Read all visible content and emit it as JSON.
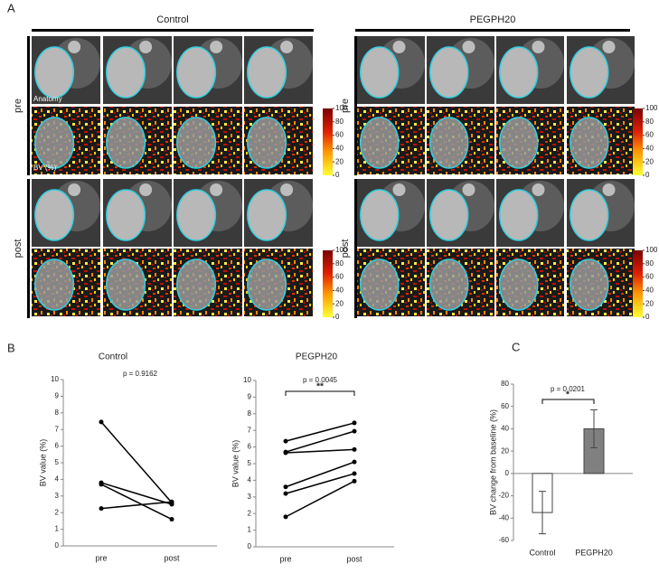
{
  "panel_a": {
    "label": "A",
    "groups": [
      "Control",
      "PEGPH20"
    ],
    "rows": [
      "pre",
      "post"
    ],
    "anatomy_label": "Anatomy",
    "bv_label": "BV (%)",
    "colorbar_lim": [
      0,
      100
    ],
    "colorbar_ticks": [
      0,
      20,
      40,
      60,
      80,
      100
    ]
  },
  "panel_labels": [
    "B",
    "C"
  ],
  "chart_data": [
    {
      "type": "line",
      "title": "Control",
      "categories": [
        "pre",
        "post"
      ],
      "y_label": "BV value (%)",
      "ylim": [
        0,
        10
      ],
      "yticks": [
        0,
        1,
        2,
        3,
        4,
        5,
        6,
        7,
        8,
        9,
        10
      ],
      "annotations": [
        "p = 0.9162"
      ],
      "series": [
        {
          "color": "#000000",
          "values": [
            7.45,
            2.6
          ]
        },
        {
          "color": "#000000",
          "values": [
            3.8,
            2.5
          ]
        },
        {
          "color": "#000000",
          "values": [
            3.7,
            1.6
          ]
        },
        {
          "color": "#000000",
          "values": [
            2.25,
            2.65
          ]
        }
      ]
    },
    {
      "type": "line",
      "title": "PEGPH20",
      "categories": [
        "pre",
        "post"
      ],
      "y_label": "BV value (%)",
      "ylim": [
        0,
        10
      ],
      "yticks": [
        0,
        1,
        2,
        3,
        4,
        5,
        6,
        7,
        8,
        9,
        10
      ],
      "annotations": [
        "p = 0.0045",
        "**"
      ],
      "series": [
        {
          "color": "#000000",
          "values": [
            6.35,
            7.45
          ]
        },
        {
          "color": "#000000",
          "values": [
            5.7,
            6.95
          ]
        },
        {
          "color": "#000000",
          "values": [
            5.65,
            5.85
          ]
        },
        {
          "color": "#000000",
          "values": [
            3.6,
            5.1
          ]
        },
        {
          "color": "#000000",
          "values": [
            3.2,
            4.4
          ]
        },
        {
          "color": "#000000",
          "values": [
            1.8,
            3.95
          ]
        }
      ]
    },
    {
      "type": "bar",
      "categories": [
        "Control",
        "PEGPH20"
      ],
      "values": [
        -35,
        40
      ],
      "errors": [
        19,
        17
      ],
      "colors": [
        "#ffffff",
        "#808080"
      ],
      "y_label": "BV change from baseline (%)",
      "ylim": [
        -60,
        80
      ],
      "yticks": [
        -60,
        -40,
        -20,
        0,
        20,
        40,
        60,
        80
      ],
      "annotations": [
        "p = 0.0201",
        "*"
      ]
    }
  ]
}
